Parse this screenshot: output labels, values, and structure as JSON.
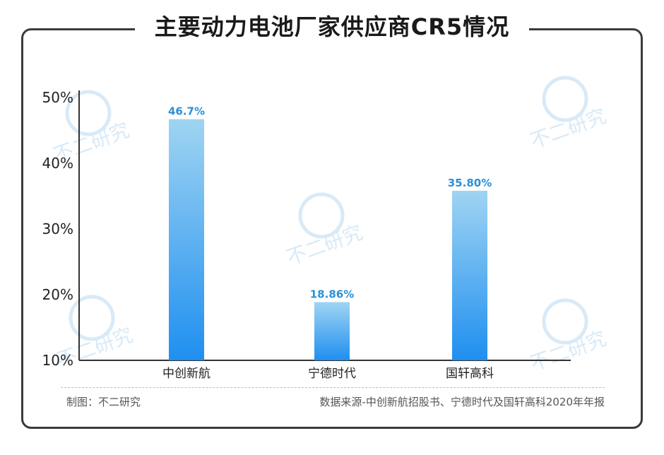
{
  "header": {
    "title": "主要动力电池厂家供应商CR5情况"
  },
  "footer": {
    "credit": "制图：不二研究",
    "source": "数据来源-中创新航招股书、宁德时代及国轩高科2020年年报"
  },
  "watermark": {
    "text": "不二研究"
  },
  "colors": {
    "bar_top": "#9fd4f2",
    "bar_bottom": "#1f8ff0",
    "label": "#2b8fd6"
  },
  "chart_data": {
    "type": "bar",
    "title": "主要动力电池厂家供应商CR5情况",
    "categories": [
      "中创新航",
      "宁德时代",
      "国轩高科"
    ],
    "values": [
      46.7,
      18.86,
      35.8
    ],
    "value_labels": [
      "46.7%",
      "18.86%",
      "35.80%"
    ],
    "yticks": [
      "10%",
      "20%",
      "30%",
      "40%",
      "50%"
    ],
    "ytick_values": [
      10,
      20,
      30,
      40,
      50
    ],
    "ylim": [
      10,
      50
    ],
    "xlabel": "",
    "ylabel": "",
    "grid": false,
    "legend": "none"
  }
}
